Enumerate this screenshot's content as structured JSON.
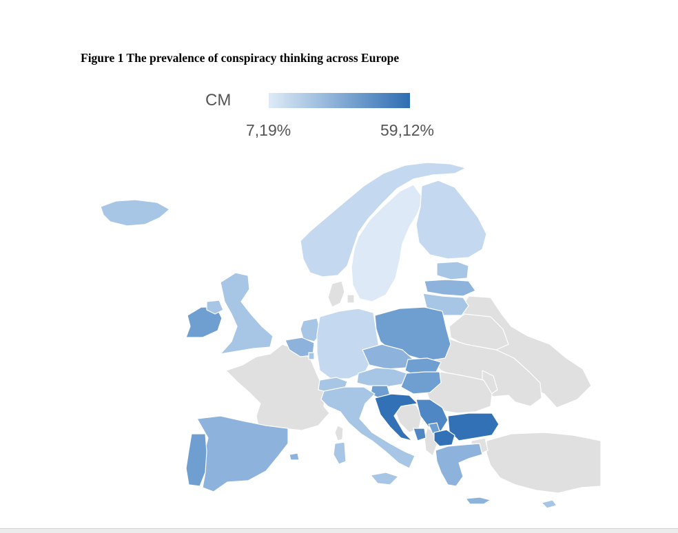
{
  "figure": {
    "title": "Figure 1 The prevalence of conspiracy thinking across Europe"
  },
  "legend": {
    "label": "CM",
    "min_label": "7,19%",
    "max_label": "59,12%",
    "min_color": "#deebf7",
    "max_color": "#2e6db3"
  },
  "colors": {
    "no_data": "#e0e0e0",
    "border": "#ffffff",
    "level_1": "#dde9f6",
    "level_2": "#c4d9ef",
    "level_3": "#a7c6e6",
    "level_4": "#8db3dc",
    "level_5": "#6f9ed1",
    "level_6": "#4f87c4",
    "level_7": "#3271b6"
  }
}
